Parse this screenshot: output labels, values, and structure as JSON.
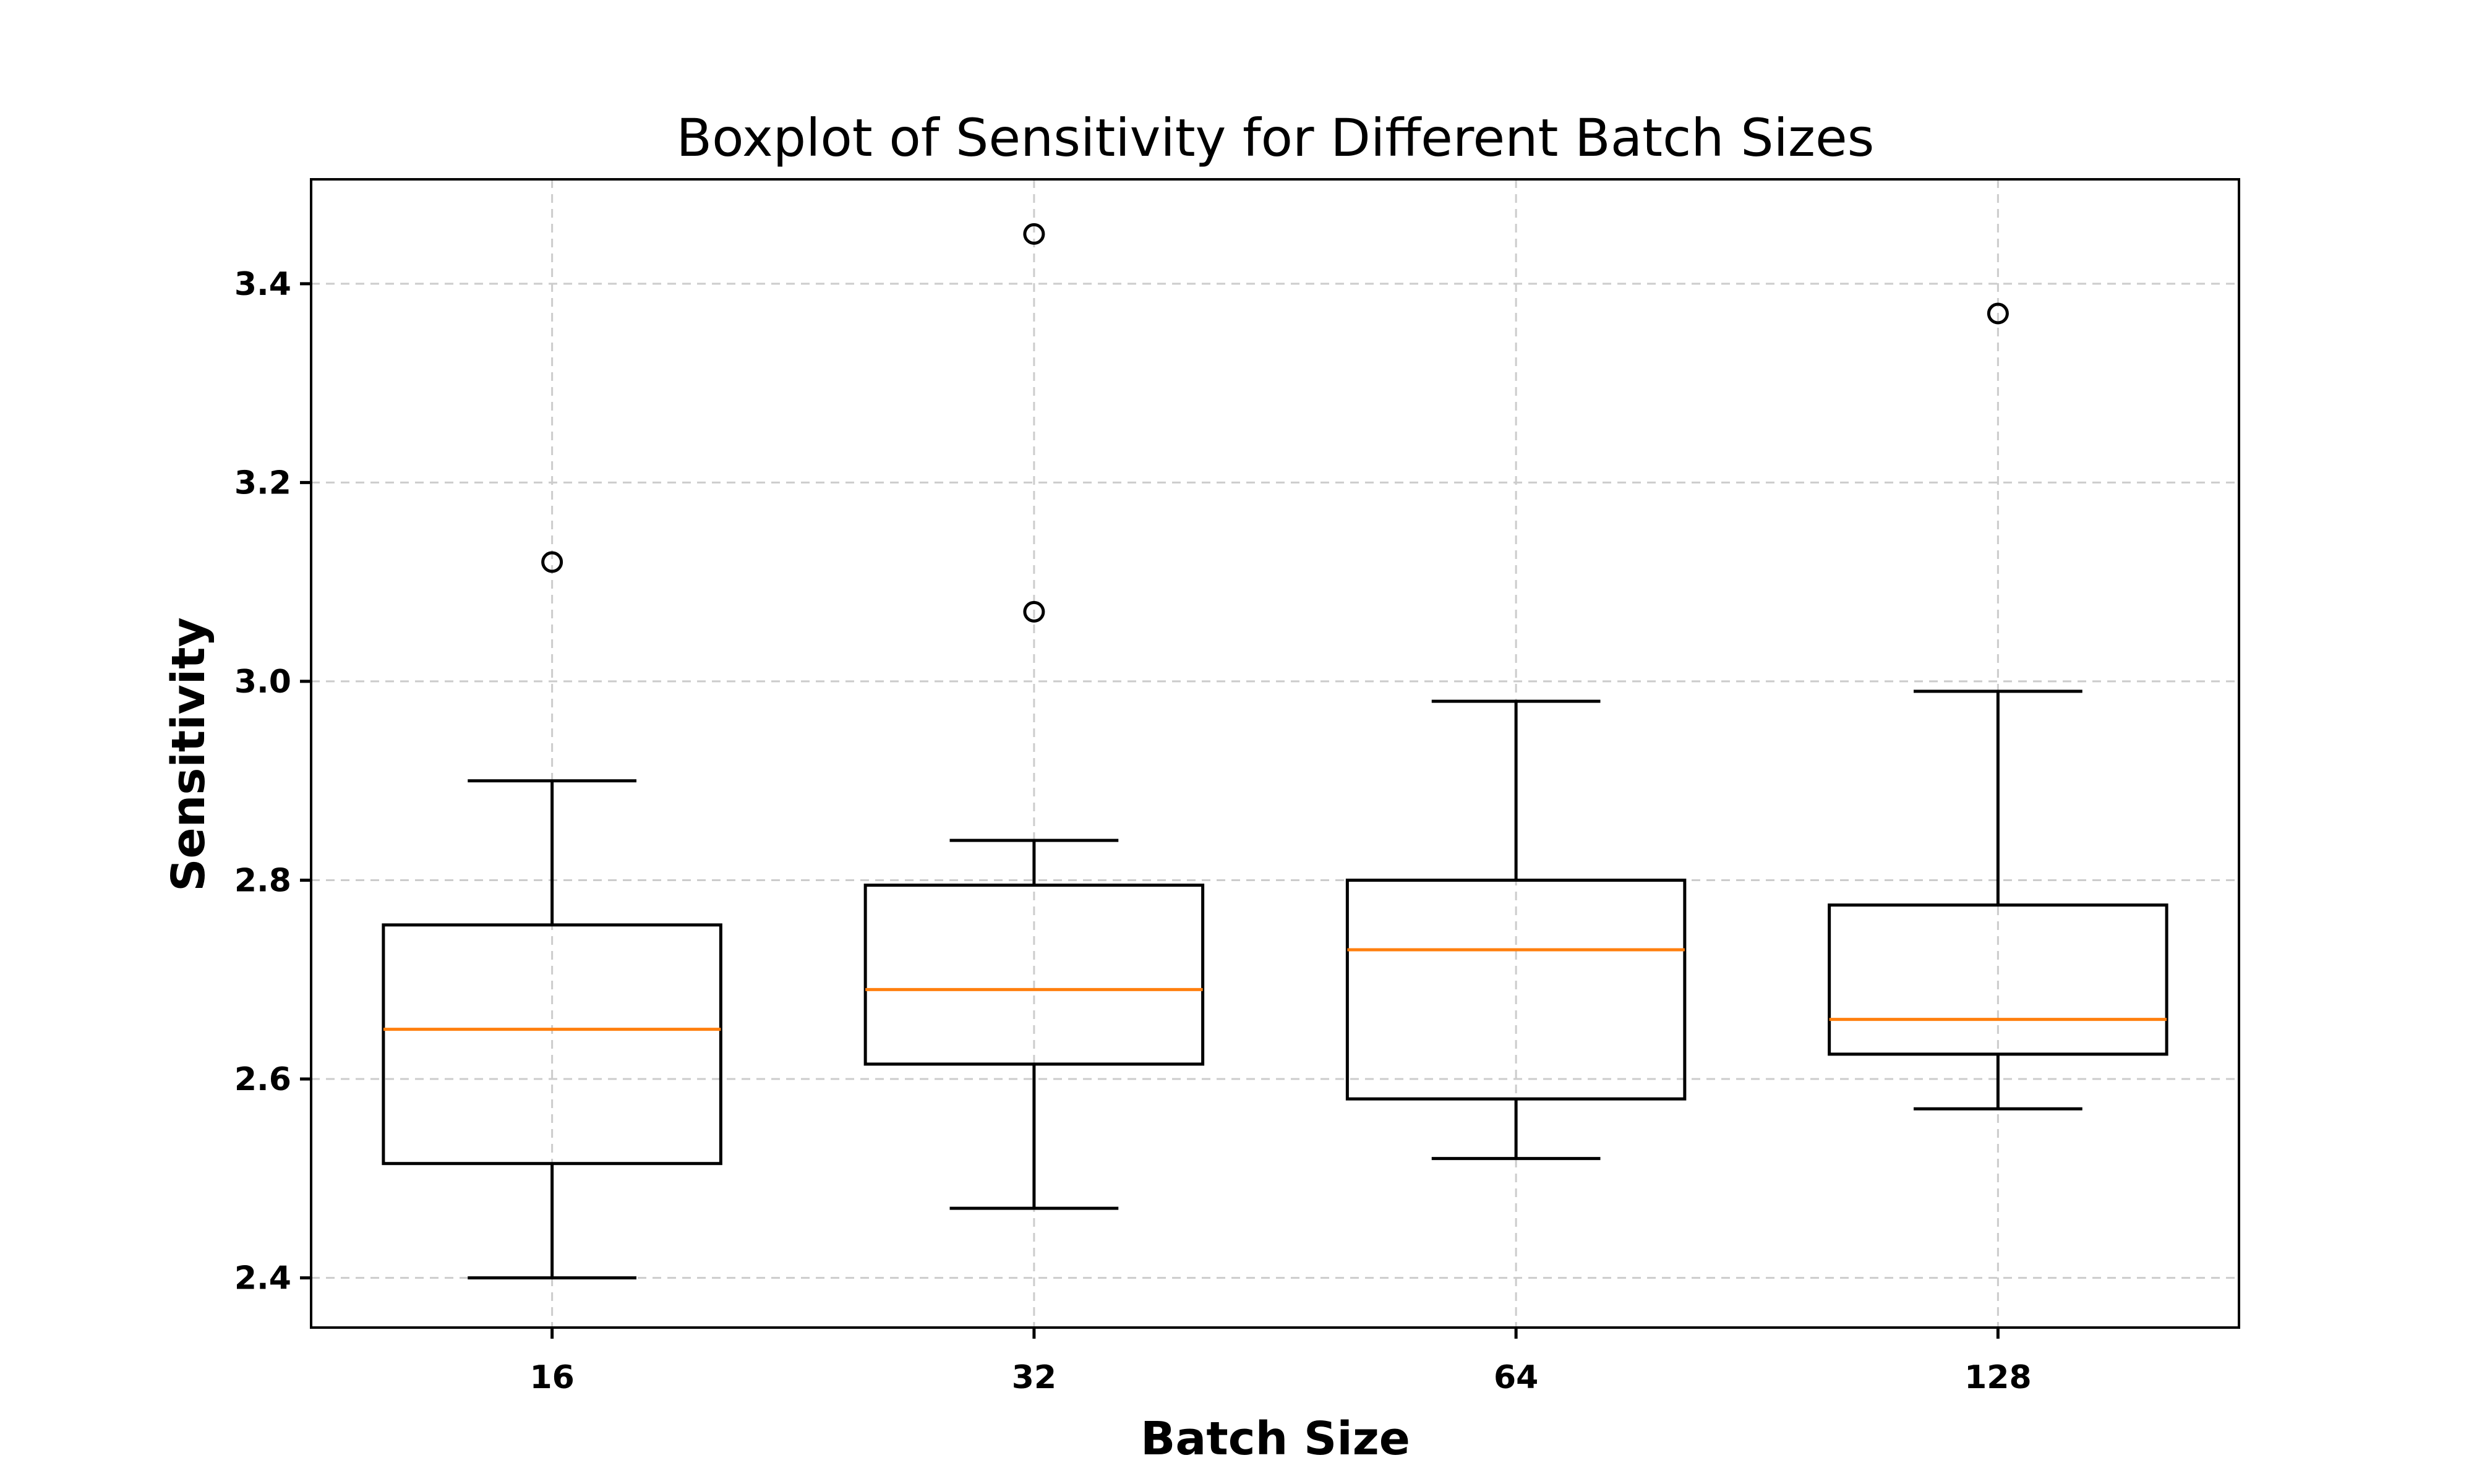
{
  "chart_data": {
    "type": "boxplot",
    "title": "Boxplot of Sensitivity for Different Batch Sizes",
    "xlabel": "Batch Size",
    "ylabel": "Sensitivity",
    "ylim": [
      2.35,
      3.505
    ],
    "yticks": [
      2.4,
      2.6,
      2.8,
      3.0,
      3.2,
      3.4
    ],
    "ytick_labels": [
      "2.4",
      "2.6",
      "2.8",
      "3.0",
      "3.2",
      "3.4"
    ],
    "grid": true,
    "categories": [
      "16",
      "32",
      "64",
      "128"
    ],
    "boxes": [
      {
        "category": "16",
        "whisker_low": 2.4,
        "q1": 2.515,
        "median": 2.65,
        "q3": 2.755,
        "whisker_high": 2.9,
        "outliers": [
          3.12
        ]
      },
      {
        "category": "32",
        "whisker_low": 2.47,
        "q1": 2.615,
        "median": 2.69,
        "q3": 2.795,
        "whisker_high": 2.84,
        "outliers": [
          3.07,
          3.45
        ]
      },
      {
        "category": "64",
        "whisker_low": 2.52,
        "q1": 2.58,
        "median": 2.73,
        "q3": 2.8,
        "whisker_high": 2.98,
        "outliers": []
      },
      {
        "category": "128",
        "whisker_low": 2.57,
        "q1": 2.625,
        "median": 2.66,
        "q3": 2.775,
        "whisker_high": 2.99,
        "outliers": [
          3.37
        ]
      }
    ],
    "colors": {
      "box": "#000000",
      "median": "#ff7f0e",
      "grid": "#cccccc"
    }
  }
}
